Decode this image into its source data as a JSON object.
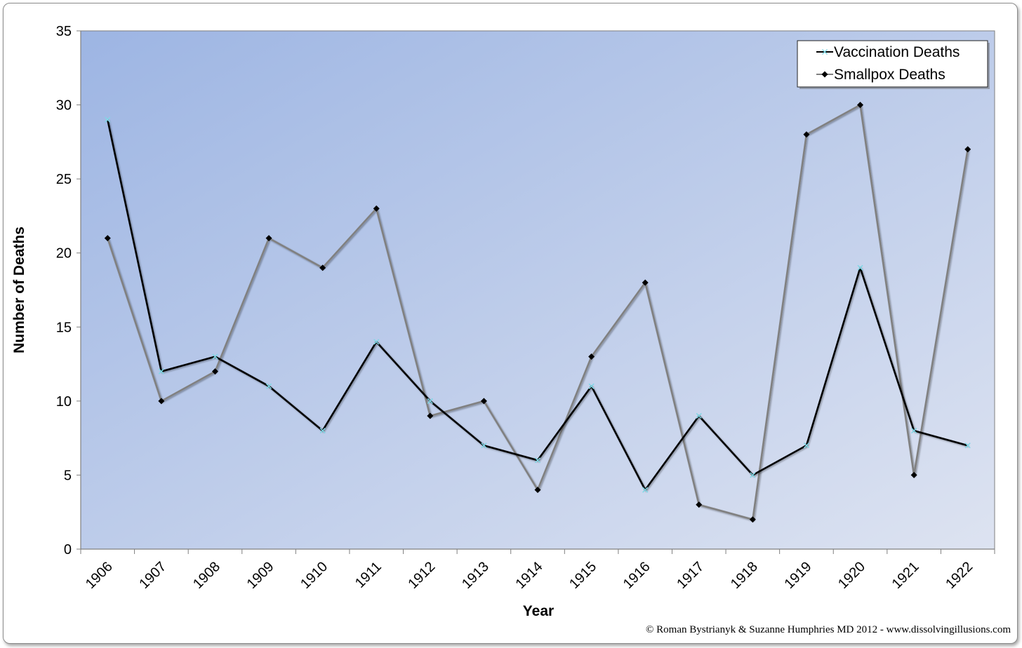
{
  "chart_data": {
    "type": "line",
    "title": "",
    "xlabel": "Year",
    "ylabel": "Number of Deaths",
    "ylim": [
      0,
      35
    ],
    "yticks": [
      0,
      5,
      10,
      15,
      20,
      25,
      30,
      35
    ],
    "categories": [
      "1906",
      "1907",
      "1908",
      "1909",
      "1910",
      "1911",
      "1912",
      "1913",
      "1914",
      "1915",
      "1916",
      "1917",
      "1918",
      "1919",
      "1920",
      "1921",
      "1922"
    ],
    "series": [
      {
        "name": "Vaccination Deaths",
        "line_color": "#000000",
        "marker": "x",
        "marker_color": "#7fd8e6",
        "values": [
          29,
          12,
          13,
          11,
          8,
          14,
          10,
          7,
          6,
          11,
          4,
          9,
          5,
          7,
          19,
          8,
          7
        ]
      },
      {
        "name": "Smallpox Deaths",
        "line_color": "#808080",
        "marker": "diamond",
        "marker_color": "#000000",
        "values": [
          21,
          10,
          12,
          21,
          19,
          23,
          9,
          10,
          4,
          13,
          18,
          3,
          2,
          28,
          30,
          5,
          27
        ]
      }
    ],
    "legend_position": "top-right",
    "grid": false,
    "background_gradient": [
      "#9db5e3",
      "#dde3f1"
    ]
  },
  "footer": {
    "copyright": "© Roman Bystrianyk & Suzanne Humphries MD 2012 - www.dissolvingillusions.com"
  }
}
